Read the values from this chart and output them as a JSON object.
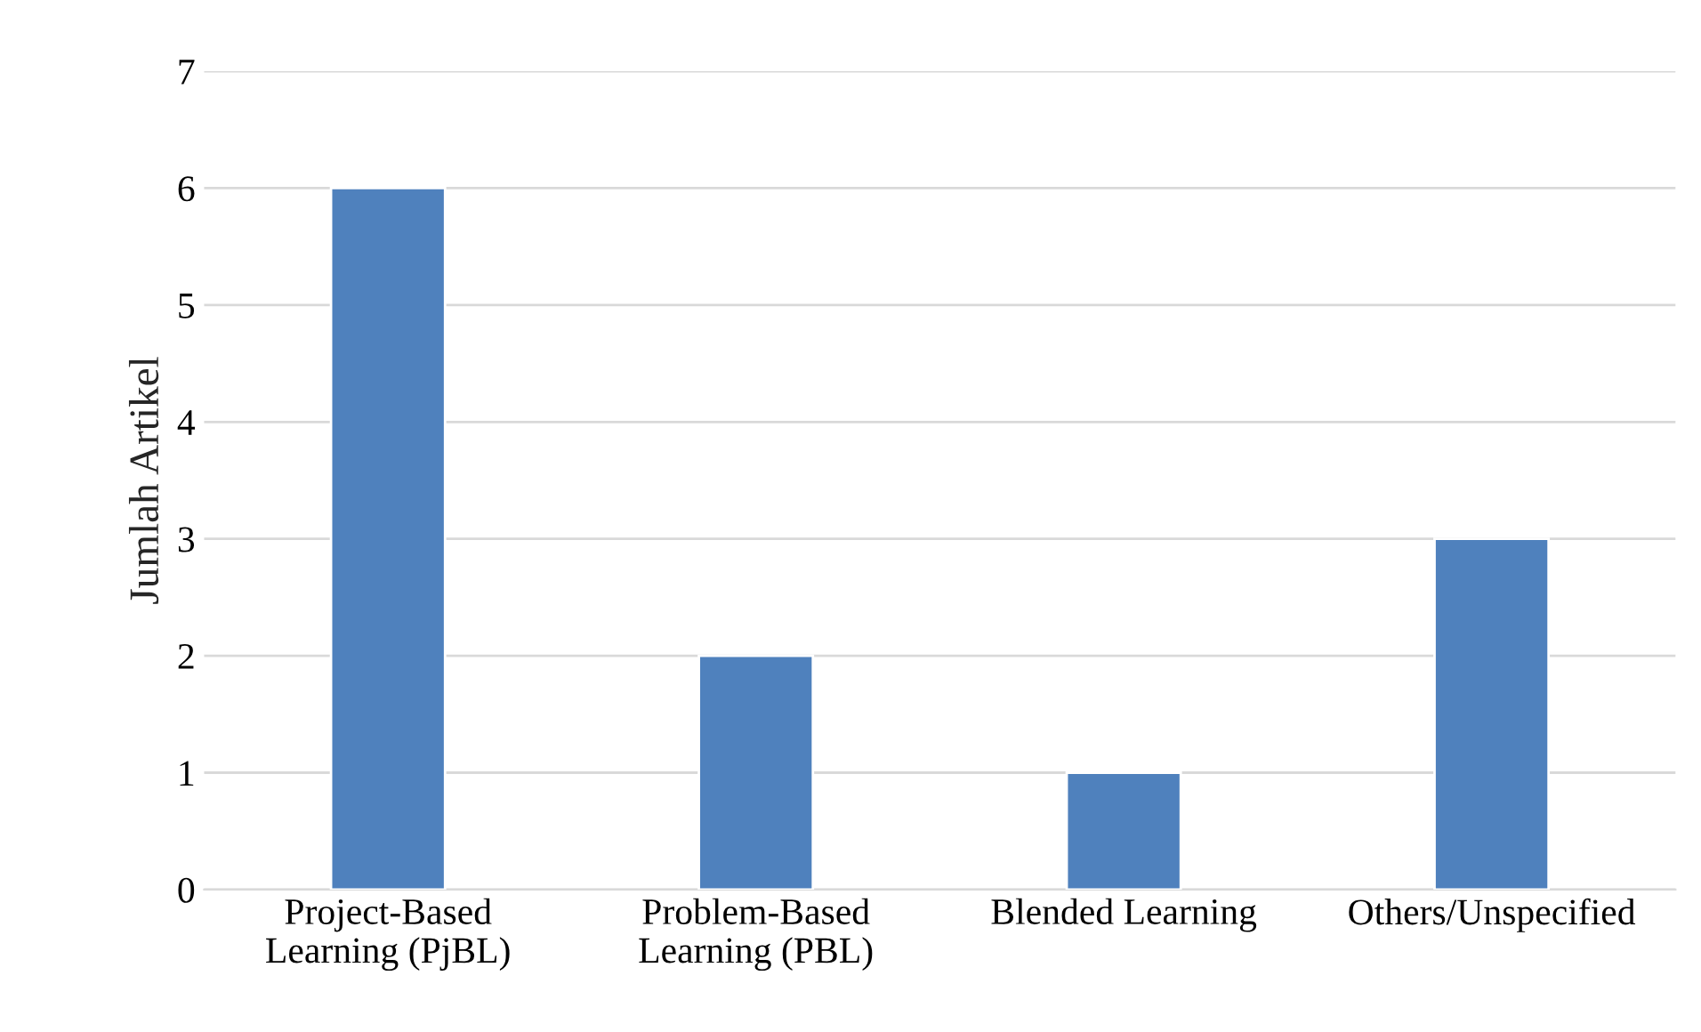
{
  "chart_data": {
    "type": "bar",
    "ylabel": "Jumlah Artikel",
    "categories": [
      "Project-Based\nLearning (PjBL)",
      "Problem-Based\nLearning (PBL)",
      "Blended Learning",
      "Others/Unspecified"
    ],
    "values": [
      6,
      2,
      1,
      3
    ],
    "color": "#4f81bd",
    "ylim": [
      0,
      7
    ],
    "yticks": [
      0,
      1,
      2,
      3,
      4,
      5,
      6,
      7
    ],
    "grid": "y",
    "legend": false
  }
}
